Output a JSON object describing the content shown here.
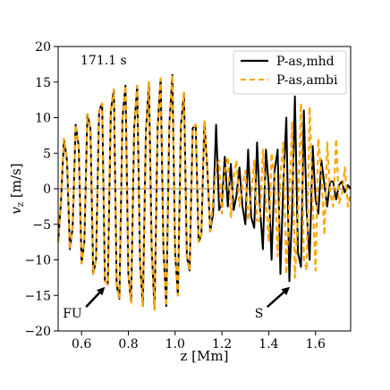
{
  "chart_data": {
    "type": "line",
    "time_label": "171.1 s",
    "xlabel": "z [Mm]",
    "ylabel_main": "v",
    "ylabel_sub": "z",
    "ylabel_units": " [m/s]",
    "xlim": [
      0.5,
      1.75
    ],
    "ylim": [
      -20,
      20
    ],
    "xticks": [
      0.6,
      0.8,
      1.0,
      1.2,
      1.4,
      1.6
    ],
    "xtick_labels": [
      "0.6",
      "0.8",
      "1.0",
      "1.2",
      "1.4",
      "1.6"
    ],
    "yticks": [
      -20,
      -15,
      -10,
      -5,
      0,
      5,
      10,
      15,
      20
    ],
    "ytick_labels": [
      "−20",
      "−15",
      "−10",
      "−5",
      "0",
      "5",
      "10",
      "15",
      "20"
    ],
    "grid": false,
    "legend_position": "top-right",
    "series": [
      {
        "name": "P-as,mhd",
        "color": "#000000",
        "style": "solid",
        "x": [
          0.5,
          0.512,
          0.525,
          0.538,
          0.55,
          0.562,
          0.575,
          0.588,
          0.6,
          0.612,
          0.625,
          0.638,
          0.65,
          0.662,
          0.675,
          0.688,
          0.7,
          0.712,
          0.725,
          0.738,
          0.75,
          0.762,
          0.775,
          0.788,
          0.8,
          0.812,
          0.825,
          0.838,
          0.85,
          0.862,
          0.875,
          0.888,
          0.9,
          0.912,
          0.925,
          0.938,
          0.95,
          0.962,
          0.975,
          0.988,
          1.0,
          1.012,
          1.025,
          1.038,
          1.05,
          1.062,
          1.075,
          1.088,
          1.1,
          1.112,
          1.125,
          1.138,
          1.15,
          1.162,
          1.175,
          1.188,
          1.2,
          1.212,
          1.225,
          1.238,
          1.25,
          1.262,
          1.275,
          1.288,
          1.3,
          1.312,
          1.325,
          1.338,
          1.35,
          1.362,
          1.375,
          1.388,
          1.4,
          1.412,
          1.425,
          1.438,
          1.45,
          1.462,
          1.475,
          1.488,
          1.5,
          1.512,
          1.525,
          1.538,
          1.55,
          1.562,
          1.575,
          1.588,
          1.6,
          1.612,
          1.625,
          1.638,
          1.65,
          1.662,
          1.675,
          1.688,
          1.7,
          1.712,
          1.725,
          1.738,
          1.75
        ],
        "y": [
          -7.5,
          -2.0,
          7.0,
          4.0,
          -8.5,
          -5.5,
          9.0,
          6.0,
          -10.5,
          -7.5,
          10.5,
          8.5,
          -12.0,
          -10.0,
          11.0,
          12.0,
          -13.0,
          -13.5,
          11.0,
          14.0,
          -13.5,
          -15.5,
          10.0,
          14.5,
          -12.0,
          -16.0,
          8.5,
          14.5,
          -10.5,
          -16.5,
          8.0,
          15.0,
          -8.5,
          -17.0,
          8.5,
          15.5,
          -8.5,
          -16.5,
          9.0,
          16.0,
          -9.0,
          -15.0,
          9.0,
          13.5,
          -9.5,
          -11.5,
          8.5,
          9.0,
          -7.5,
          -6.5,
          9.5,
          2.5,
          -6.0,
          -3.5,
          9.0,
          -3.0,
          -2.0,
          4.5,
          -2.5,
          3.5,
          -3.0,
          -1.0,
          3.0,
          -2.5,
          -5.0,
          5.5,
          -4.0,
          -5.5,
          6.5,
          -2.5,
          -8.5,
          5.5,
          0.5,
          -10.0,
          2.5,
          5.5,
          -12.0,
          0.5,
          10.0,
          -13.0,
          -3.0,
          13.0,
          -9.0,
          -11.0,
          11.0,
          -3.0,
          -10.0,
          6.0,
          -1.5,
          -3.5,
          4.0,
          0.5,
          -2.5,
          1.0,
          1.0,
          -1.5,
          0.5,
          1.0,
          -0.5,
          0.5,
          0.0
        ]
      },
      {
        "name": "P-as,ambi",
        "color": "#FFA500",
        "style": "dashed",
        "x": [
          0.5,
          0.512,
          0.525,
          0.538,
          0.55,
          0.562,
          0.575,
          0.588,
          0.6,
          0.612,
          0.625,
          0.638,
          0.65,
          0.662,
          0.675,
          0.688,
          0.7,
          0.712,
          0.725,
          0.738,
          0.75,
          0.762,
          0.775,
          0.788,
          0.8,
          0.812,
          0.825,
          0.838,
          0.85,
          0.862,
          0.875,
          0.888,
          0.9,
          0.912,
          0.925,
          0.938,
          0.95,
          0.962,
          0.975,
          0.988,
          1.0,
          1.012,
          1.025,
          1.038,
          1.05,
          1.062,
          1.075,
          1.088,
          1.1,
          1.112,
          1.125,
          1.138,
          1.15,
          1.162,
          1.175,
          1.188,
          1.2,
          1.212,
          1.225,
          1.238,
          1.25,
          1.262,
          1.275,
          1.288,
          1.3,
          1.312,
          1.325,
          1.338,
          1.35,
          1.362,
          1.375,
          1.388,
          1.4,
          1.412,
          1.425,
          1.438,
          1.45,
          1.462,
          1.475,
          1.488,
          1.5,
          1.512,
          1.525,
          1.538,
          1.55,
          1.562,
          1.575,
          1.588,
          1.6,
          1.612,
          1.625,
          1.638,
          1.65,
          1.662,
          1.675,
          1.688,
          1.7,
          1.712,
          1.725,
          1.738,
          1.75
        ],
        "y": [
          -7.5,
          -2.0,
          7.0,
          4.0,
          -8.5,
          -5.5,
          9.0,
          6.0,
          -10.5,
          -7.5,
          10.5,
          8.5,
          -12.0,
          -10.0,
          11.0,
          12.0,
          -13.0,
          -13.5,
          11.0,
          14.0,
          -13.5,
          -15.5,
          10.0,
          14.5,
          -12.0,
          -16.0,
          8.5,
          14.5,
          -10.5,
          -16.5,
          8.0,
          15.0,
          -8.5,
          -17.0,
          8.5,
          15.5,
          -8.5,
          -16.5,
          9.0,
          16.0,
          -9.0,
          -15.0,
          9.0,
          13.5,
          -9.5,
          -11.5,
          8.5,
          9.0,
          -7.5,
          -6.5,
          9.5,
          2.5,
          -6.0,
          -2.0,
          3.0,
          4.0,
          -3.5,
          2.5,
          4.5,
          -4.0,
          1.5,
          4.0,
          -2.5,
          0.5,
          2.5,
          -4.5,
          -1.0,
          4.0,
          -4.5,
          -4.5,
          5.5,
          -1.5,
          -7.5,
          5.0,
          1.5,
          -9.5,
          2.0,
          6.5,
          -12.0,
          -1.5,
          9.5,
          -12.5,
          -3.5,
          12.0,
          -10.0,
          -11.5,
          11.5,
          -2.0,
          -11.5,
          7.0,
          2.0,
          -6.5,
          6.5,
          -0.5,
          -2.5,
          7.0,
          -2.0,
          -1.0,
          3.0,
          -2.5,
          -0.5
        ]
      }
    ],
    "annotations": [
      {
        "label": "FU",
        "x": 0.52,
        "y": -17.5,
        "arrow_to": [
          0.7,
          -13.8
        ]
      },
      {
        "label": "S",
        "x": 1.34,
        "y": -17.5,
        "arrow_to": [
          1.49,
          -13.8
        ]
      }
    ]
  }
}
